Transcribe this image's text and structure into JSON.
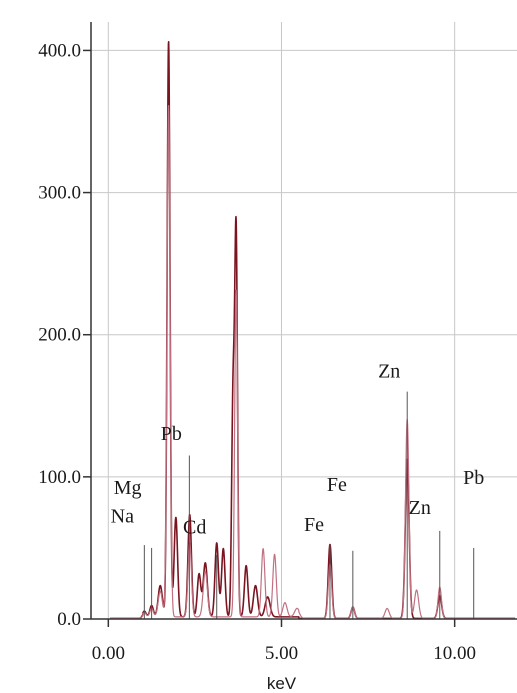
{
  "chart_data": {
    "type": "line",
    "xlabel": "keV",
    "ylabel": "",
    "xlim": [
      -0.5,
      11.8
    ],
    "ylim": [
      0,
      420
    ],
    "x_ticks": [
      0,
      5,
      10
    ],
    "x_tick_labels": [
      "0.00",
      "5.00",
      "10.00"
    ],
    "y_ticks": [
      0,
      100,
      200,
      300,
      400
    ],
    "y_tick_labels": [
      "0.0",
      "100.0",
      "200.0",
      "300.0",
      "400.0"
    ],
    "grid": true,
    "legend": "none",
    "colors": {
      "spectrum_a": "#7a1420",
      "spectrum_b": "#c07080",
      "marker": "#555555",
      "grid": "#c8c8c8",
      "axis": "#333333"
    },
    "series": [
      {
        "peaks": [
          {
            "x": 1.04,
            "y": 4,
            "w": 0.05
          },
          {
            "x": 1.25,
            "y": 8,
            "w": 0.05
          },
          {
            "x": 1.5,
            "y": 22,
            "w": 0.06
          },
          {
            "x": 1.74,
            "y": 405,
            "w": 0.042
          },
          {
            "x": 1.95,
            "y": 70,
            "w": 0.05
          },
          {
            "x": 2.35,
            "y": 72,
            "w": 0.05
          },
          {
            "x": 2.62,
            "y": 30,
            "w": 0.05
          },
          {
            "x": 2.8,
            "y": 38,
            "w": 0.06
          },
          {
            "x": 3.13,
            "y": 52,
            "w": 0.05
          },
          {
            "x": 3.32,
            "y": 48,
            "w": 0.05
          },
          {
            "x": 3.6,
            "y": 150,
            "w": 0.04
          },
          {
            "x": 3.69,
            "y": 268,
            "w": 0.04
          },
          {
            "x": 3.98,
            "y": 36,
            "w": 0.05
          },
          {
            "x": 4.25,
            "y": 22,
            "w": 0.06
          },
          {
            "x": 4.6,
            "y": 14,
            "w": 0.07
          },
          {
            "x": 6.4,
            "y": 52,
            "w": 0.05
          },
          {
            "x": 7.06,
            "y": 8,
            "w": 0.05
          },
          {
            "x": 8.63,
            "y": 112,
            "w": 0.055
          },
          {
            "x": 9.57,
            "y": 16,
            "w": 0.055
          }
        ]
      },
      {
        "peaks": [
          {
            "x": 1.04,
            "y": 3,
            "w": 0.05
          },
          {
            "x": 1.25,
            "y": 6,
            "w": 0.05
          },
          {
            "x": 1.5,
            "y": 18,
            "w": 0.06
          },
          {
            "x": 1.74,
            "y": 360,
            "w": 0.045
          },
          {
            "x": 2.35,
            "y": 52,
            "w": 0.05
          },
          {
            "x": 2.8,
            "y": 32,
            "w": 0.06
          },
          {
            "x": 3.69,
            "y": 230,
            "w": 0.042
          },
          {
            "x": 4.47,
            "y": 48,
            "w": 0.05
          },
          {
            "x": 4.8,
            "y": 44,
            "w": 0.05
          },
          {
            "x": 5.1,
            "y": 10,
            "w": 0.06
          },
          {
            "x": 5.45,
            "y": 6,
            "w": 0.07
          },
          {
            "x": 6.4,
            "y": 38,
            "w": 0.05
          },
          {
            "x": 7.06,
            "y": 8,
            "w": 0.05
          },
          {
            "x": 8.05,
            "y": 7,
            "w": 0.06
          },
          {
            "x": 8.63,
            "y": 140,
            "w": 0.05
          },
          {
            "x": 8.9,
            "y": 20,
            "w": 0.06
          },
          {
            "x": 9.57,
            "y": 22,
            "w": 0.05
          }
        ]
      }
    ],
    "element_markers": [
      {
        "label": "Na",
        "x": 1.04,
        "height": 52,
        "label_y": 68
      },
      {
        "label": "Mg",
        "x": 1.25,
        "height": 50,
        "label_y": 88
      },
      {
        "label": "Pb",
        "x": 2.34,
        "height": 115,
        "label_y": 126
      },
      {
        "label": "Cd",
        "x": 3.13,
        "height": 45,
        "label_y": 60
      },
      {
        "label": "Fe",
        "x": 6.4,
        "height": 52,
        "label_y": 62
      },
      {
        "label": "Fe",
        "x": 7.06,
        "height": 48,
        "label_y": 90
      },
      {
        "label": "Zn",
        "x": 8.63,
        "height": 160,
        "label_y": 170
      },
      {
        "label": "Zn",
        "x": 9.57,
        "height": 62,
        "label_y": 74
      },
      {
        "label": "Pb",
        "x": 10.55,
        "height": 50,
        "label_y": 95
      }
    ],
    "label_offsets": [
      -22,
      -24,
      -18,
      -22,
      -16,
      -16,
      -18,
      -20,
      0
    ]
  }
}
